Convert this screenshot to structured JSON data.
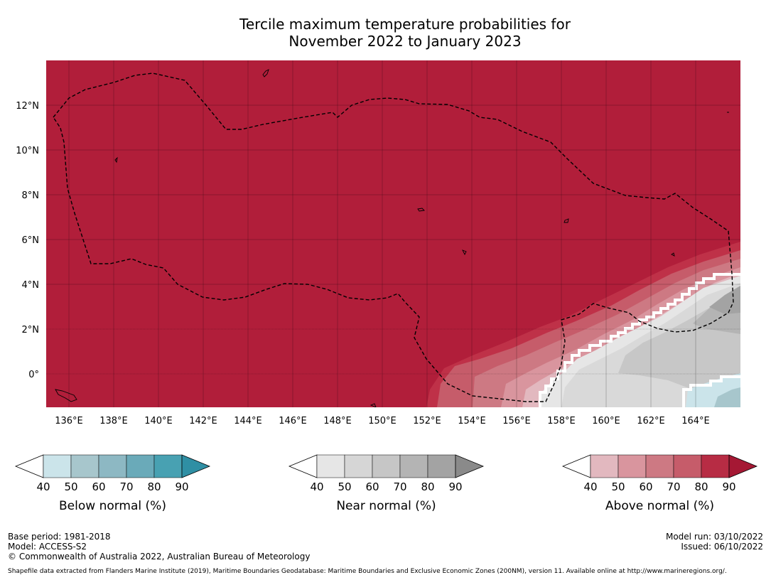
{
  "title": {
    "line1": "Tercile maximum temperature probabilities for",
    "line2": "November 2022 to January 2023"
  },
  "map": {
    "lat_ticks": [
      "12°N",
      "10°N",
      "8°N",
      "6°N",
      "4°N",
      "2°N",
      "0°"
    ],
    "lon_ticks": [
      "136°E",
      "138°E",
      "140°E",
      "142°E",
      "144°E",
      "146°E",
      "148°E",
      "150°E",
      "152°E",
      "154°E",
      "156°E",
      "158°E",
      "160°E",
      "162°E",
      "164°E"
    ],
    "colors": {
      "above_90": "#b11e3a",
      "above_80": "#bf3148",
      "above_70": "#c65c6a",
      "above_60": "#cd7983",
      "above_50": "#d9959e",
      "above_40": "#e2b8bf",
      "near_40": "#e6e6e6",
      "near_50": "#d9d9d9",
      "near_60": "#c7c7c7",
      "near_70": "#b4b4b4",
      "near_80": "#a3a3a3",
      "below_40": "#cbe4ea",
      "below_50": "#a7c6cc"
    }
  },
  "colorbars": [
    {
      "id": "below",
      "label": "Below normal (%)",
      "ticks": [
        "40",
        "50",
        "60",
        "70",
        "80",
        "90"
      ],
      "colors": [
        "#cbe4ea",
        "#a7c6cc",
        "#8db8c3",
        "#6aaab9",
        "#48a1b2",
        "#2f8fa4"
      ]
    },
    {
      "id": "near",
      "label": "Near normal (%)",
      "ticks": [
        "40",
        "50",
        "60",
        "70",
        "80",
        "90"
      ],
      "colors": [
        "#e6e6e6",
        "#d6d6d6",
        "#c6c6c6",
        "#b4b4b4",
        "#a3a3a3",
        "#8a8a8a"
      ]
    },
    {
      "id": "above",
      "label": "Above normal (%)",
      "ticks": [
        "40",
        "50",
        "60",
        "70",
        "80",
        "90"
      ],
      "colors": [
        "#e2b8bf",
        "#d9959e",
        "#cd7983",
        "#c65c6a",
        "#b72c44",
        "#a51834"
      ]
    }
  ],
  "footer": {
    "base_period": "Base period: 1981-2018",
    "model": "Model: ACCESS-S2",
    "copyright": "© Commonwealth of Australia 2022, Australian Bureau of Meteorology",
    "model_run": "Model run: 03/10/2022",
    "issued": "Issued: 06/10/2022",
    "shapefile": "Shapefile data extracted from Flanders Marine Institute (2019), Maritime Boundaries Geodatabase: Maritime Boundaries and Exclusive Economic Zones (200NM), version 11. Available online at http://www.marineregions.org/."
  }
}
